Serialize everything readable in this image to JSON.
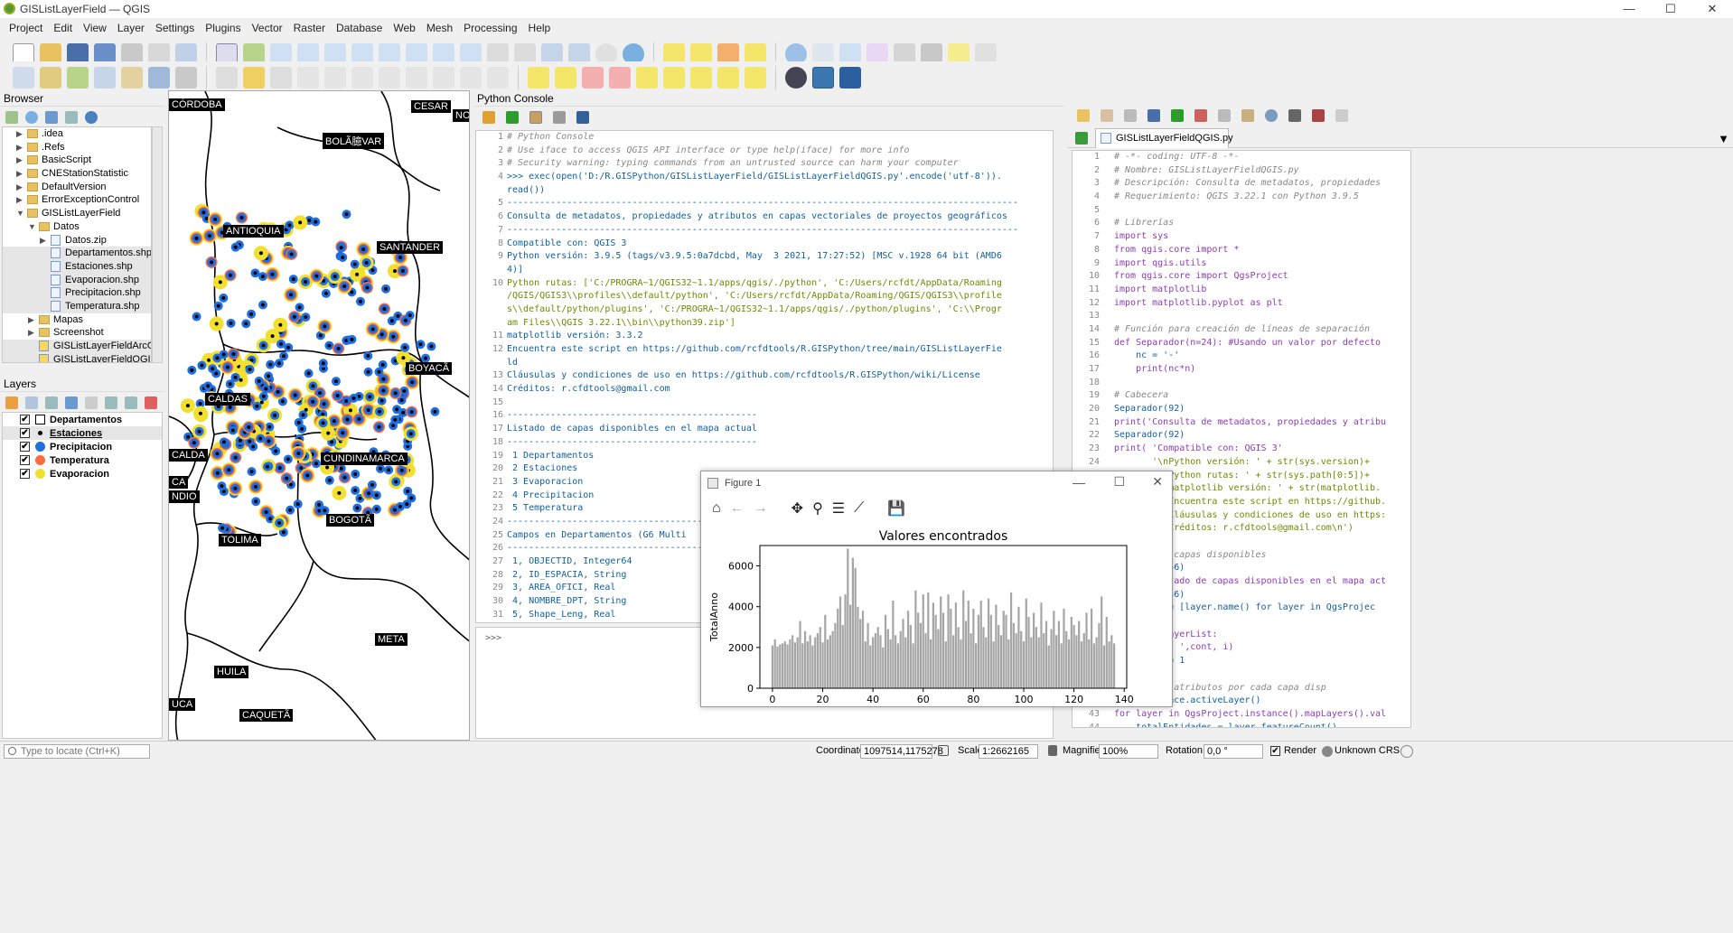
{
  "window": {
    "title": "GISListLayerField — QGIS",
    "controls": [
      "—",
      "☐",
      "✕"
    ]
  },
  "menu": [
    "Project",
    "Edit",
    "View",
    "Layer",
    "Settings",
    "Plugins",
    "Vector",
    "Raster",
    "Database",
    "Web",
    "Mesh",
    "Processing",
    "Help"
  ],
  "browser": {
    "title": "Browser",
    "items": [
      {
        "label": ".idea",
        "type": "folder",
        "depth": 2,
        "arrow": "▶"
      },
      {
        "label": ".Refs",
        "type": "folder",
        "depth": 2,
        "arrow": "▶"
      },
      {
        "label": "BasicScript",
        "type": "folder",
        "depth": 2,
        "arrow": "▶"
      },
      {
        "label": "CNEStationStatistic",
        "type": "folder",
        "depth": 2,
        "arrow": "▶"
      },
      {
        "label": "DefaultVersion",
        "type": "folder",
        "depth": 2,
        "arrow": "▶"
      },
      {
        "label": "ErrorExceptionControl",
        "type": "folder",
        "depth": 2,
        "arrow": "▶"
      },
      {
        "label": "GISListLayerField",
        "type": "folder",
        "depth": 2,
        "arrow": "▼"
      },
      {
        "label": "Datos",
        "type": "folder",
        "depth": 3,
        "arrow": "▼"
      },
      {
        "label": "Datos.zip",
        "type": "file",
        "depth": 4,
        "arrow": "▶"
      },
      {
        "label": "Departamentos.shp",
        "type": "shp",
        "depth": 4,
        "arrow": ""
      },
      {
        "label": "Estaciones.shp",
        "type": "shp",
        "depth": 4,
        "arrow": ""
      },
      {
        "label": "Evaporacion.shp",
        "type": "shp",
        "depth": 4,
        "arrow": ""
      },
      {
        "label": "Precipitacion.shp",
        "type": "shp",
        "depth": 4,
        "arrow": ""
      },
      {
        "label": "Temperatura.shp",
        "type": "shp",
        "depth": 4,
        "arrow": ""
      },
      {
        "label": "Mapas",
        "type": "folder",
        "depth": 3,
        "arrow": "▶"
      },
      {
        "label": "Screenshot",
        "type": "folder",
        "depth": 3,
        "arrow": "▶"
      },
      {
        "label": "GISListLayerFieldArcGI",
        "type": "py",
        "depth": 3,
        "arrow": ""
      },
      {
        "label": "GISListLayerFieldQGIS",
        "type": "py",
        "depth": 3,
        "arrow": ""
      }
    ]
  },
  "layers": {
    "title": "Layers",
    "items": [
      {
        "label": "Departamentos",
        "symbol": "square",
        "color": "#ffffff",
        "checked": true
      },
      {
        "label": "Estaciones",
        "symbol": "dot",
        "color": "#000000",
        "checked": true
      },
      {
        "label": "Precipitacion",
        "symbol": "circle",
        "color": "#1f6fe0",
        "checked": true
      },
      {
        "label": "Temperatura",
        "symbol": "circle",
        "color": "#ff6a3d",
        "checked": true
      },
      {
        "label": "Evaporacion",
        "symbol": "circle",
        "color": "#f2e030",
        "checked": true
      }
    ]
  },
  "map": {
    "labels": [
      "CÓRDOBA",
      "CESAR",
      "NO",
      "BOLÃ臆VAR",
      "ANTIOQUIA",
      "SANTANDER",
      "BOYACÃ",
      "CALDAS",
      "CALDA",
      "CA",
      "NDIO",
      "CUNDINAMARCA",
      "BOGOTÃ",
      "TOLIMA",
      "META",
      "HUILA",
      "UCA",
      "CAQUETÃ"
    ]
  },
  "console": {
    "title": "Python Console",
    "prompt": ">>>",
    "lines": [
      {
        "n": "1",
        "t": "# Python Console",
        "c": "cm"
      },
      {
        "n": "2",
        "t": "# Use iface to access QGIS API interface or type help(iface) for more info",
        "c": "cm"
      },
      {
        "n": "3",
        "t": "# Security warning: typing commands from an untrusted source can harm your computer",
        "c": "cm"
      },
      {
        "n": "4",
        "t": ">>> exec(open('D:/R.GISPython/GISListLayerField/GISListLayerFieldQGIS.py'.encode('utf-8')).",
        "c": "fn"
      },
      {
        "n": "",
        "t": "read())",
        "c": "fn"
      },
      {
        "n": "5",
        "t": "----------------------------------------------------------------------------------------------",
        "c": "fn"
      },
      {
        "n": "6",
        "t": "Consulta de metadatos, propiedades y atributos en capas vectoriales de proyectos geográficos",
        "c": "fn"
      },
      {
        "n": "7",
        "t": "----------------------------------------------------------------------------------------------",
        "c": "fn"
      },
      {
        "n": "8",
        "t": "Compatible con: QGIS 3",
        "c": "fn"
      },
      {
        "n": "9",
        "t": "Python versión: 3.9.5 (tags/v3.9.5:0a7dcbd, May  3 2021, 17:27:52) [MSC v.1928 64 bit (AMD6",
        "c": "fn"
      },
      {
        "n": "",
        "t": "4)]",
        "c": "fn"
      },
      {
        "n": "10",
        "t": "Python rutas: ['C:/PROGRA~1/QGIS32~1.1/apps/qgis/./python', 'C:/Users/rcfdt/AppData/Roaming",
        "c": "fn"
      },
      {
        "n": "",
        "t": "/QGIS/QGIS3\\\\profiles\\\\default/python', 'C:/Users/rcfdt/AppData/Roaming/QGIS/QGIS3\\\\profile",
        "c": "fn"
      },
      {
        "n": "",
        "t": "s\\\\default/python/plugins', 'C:/PROGRA~1/QGIS32~1.1/apps/qgis/./python/plugins', 'C:\\\\Progr",
        "c": "fn"
      },
      {
        "n": "",
        "t": "am Files\\\\QGIS 3.22.1\\\\bin\\\\python39.zip']",
        "c": "fn"
      },
      {
        "n": "11",
        "t": "matplotlib versión: 3.3.2",
        "c": "fn"
      },
      {
        "n": "12",
        "t": "Encuentra este script en https://github.com/rcfdtools/R.GISPython/tree/main/GISListLayerFie",
        "c": "fn"
      },
      {
        "n": "",
        "t": "ld",
        "c": "fn"
      },
      {
        "n": "13",
        "t": "Cláusulas y condiciones de uso en https://github.com/rcfdtools/R.GISPython/wiki/License",
        "c": "fn"
      },
      {
        "n": "14",
        "t": "Créditos: r.cfdtools@gmail.com",
        "c": "fn"
      },
      {
        "n": "15",
        "t": "",
        "c": "fn"
      },
      {
        "n": "16",
        "t": "----------------------------------------------",
        "c": "fn"
      },
      {
        "n": "17",
        "t": "Listado de capas disponibles en el mapa actual",
        "c": "fn"
      },
      {
        "n": "18",
        "t": "----------------------------------------------",
        "c": "fn"
      },
      {
        "n": "19",
        "t": " 1 Departamentos",
        "c": "fn"
      },
      {
        "n": "20",
        "t": " 2 Estaciones",
        "c": "fn"
      },
      {
        "n": "21",
        "t": " 3 Evaporacion",
        "c": "fn"
      },
      {
        "n": "22",
        "t": " 4 Precipitacion",
        "c": "fn"
      },
      {
        "n": "23",
        "t": " 5 Temperatura",
        "c": "fn"
      },
      {
        "n": "24",
        "t": "--------------------------------------------------",
        "c": "fn"
      },
      {
        "n": "25",
        "t": "Campos en Departamentos (G6 Multi",
        "c": "fn"
      },
      {
        "n": "26",
        "t": "--------------------------------------------------",
        "c": "fn"
      },
      {
        "n": "27",
        "t": " 1, OBJECTID, Integer64",
        "c": "fn"
      },
      {
        "n": "28",
        "t": " 2, ID_ESPACIA, String",
        "c": "fn"
      },
      {
        "n": "29",
        "t": " 3, AREA_OFICI, Real",
        "c": "fn"
      },
      {
        "n": "30",
        "t": " 4, NOMBRE_DPT, String",
        "c": "fn"
      },
      {
        "n": "31",
        "t": " 5, Shape_Leng, Real",
        "c": "fn"
      }
    ]
  },
  "editor": {
    "tab": "GISListLayerFieldQGIS.py",
    "close": "✕",
    "lines": [
      {
        "n": "1",
        "t": "# -*- coding: UTF-8 -*-",
        "c": "cm"
      },
      {
        "n": "2",
        "t": "# Nombre: GISListLayerFieldQGIS.py",
        "c": "cm"
      },
      {
        "n": "3",
        "t": "# Descripción: Consulta de metadatos, propiedades",
        "c": "cm"
      },
      {
        "n": "4",
        "t": "# Requerimiento: QGIS 3.22.1 con Python 3.9.5",
        "c": "cm"
      },
      {
        "n": "5",
        "t": "",
        "c": "cm"
      },
      {
        "n": "6",
        "t": "# Librerías",
        "c": "cm"
      },
      {
        "n": "7",
        "t": "import sys",
        "c": "kw"
      },
      {
        "n": "8",
        "t": "from qgis.core import *",
        "c": "kw"
      },
      {
        "n": "9",
        "t": "import qgis.utils",
        "c": "kw"
      },
      {
        "n": "10",
        "t": "from qgis.core import QgsProject",
        "c": "kw"
      },
      {
        "n": "11",
        "t": "import matplotlib",
        "c": "kw"
      },
      {
        "n": "12",
        "t": "import matplotlib.pyplot as plt",
        "c": "kw"
      },
      {
        "n": "13",
        "t": "",
        "c": "kw"
      },
      {
        "n": "14",
        "t": "# Función para creación de líneas de separación",
        "c": "cm"
      },
      {
        "n": "15",
        "t": "def Separador(n=24): #Usando un valor por defecto",
        "c": "kw"
      },
      {
        "n": "16",
        "t": "    nc = '-'",
        "c": "fn"
      },
      {
        "n": "17",
        "t": "    print(nc*n)",
        "c": "kw"
      },
      {
        "n": "18",
        "t": "",
        "c": "fn"
      },
      {
        "n": "19",
        "t": "# Cabecera",
        "c": "cm"
      },
      {
        "n": "20",
        "t": "Separador(92)",
        "c": "fn"
      },
      {
        "n": "21",
        "t": "print('Consulta de metadatos, propiedades y atribu",
        "c": "kw"
      },
      {
        "n": "22",
        "t": "Separador(92)",
        "c": "fn"
      },
      {
        "n": "23",
        "t": "print( 'Compatible con: QGIS 3'",
        "c": "kw"
      },
      {
        "n": "24",
        "t": "       '\\nPython versión: ' + str(sys.version)+",
        "c": "st"
      },
      {
        "n": "25",
        "t": "       '\\nPython rutas: ' + str(sys.path[0:5])+",
        "c": "st"
      },
      {
        "n": "26",
        "t": "       '\\nmatplotlib versión: ' + str(matplotlib.",
        "c": "st"
      },
      {
        "n": "27",
        "t": "       '\\nEncuentra este script en https://github.",
        "c": "st"
      },
      {
        "n": "28",
        "t": "       '\\nCláusulas y condiciones de uso en https:",
        "c": "st"
      },
      {
        "n": "29",
        "t": "       '\\nCréditos: r.cfdtools@gmail.com\\n')",
        "c": "st"
      },
      {
        "n": "30",
        "t": "",
        "c": "fn"
      },
      {
        "n": "31",
        "t": "# Lista de capas disponibles",
        "c": "cm"
      },
      {
        "n": "32",
        "t": "Separador(46)",
        "c": "fn"
      },
      {
        "n": "33",
        "t": "print('Listado de capas disponibles en el mapa act",
        "c": "kw"
      },
      {
        "n": "34",
        "t": "Separador(46)",
        "c": "fn"
      },
      {
        "n": "35",
        "t": "layerList = [layer.name() for layer in QgsProjec",
        "c": "fn"
      },
      {
        "n": "36",
        "t": "cont = 1",
        "c": "fn"
      },
      {
        "n": "37",
        "t": "for i in layerList:",
        "c": "kw"
      },
      {
        "n": "38",
        "t": "    print(' ',cont, i)",
        "c": "kw"
      },
      {
        "n": "39",
        "t": "    cont += 1",
        "c": "fn"
      },
      {
        "n": "40",
        "t": "",
        "c": "fn"
      },
      {
        "n": "41",
        "t": "# Lista de atributos por cada capa disp",
        "c": "cm"
      },
      {
        "n": "42",
        "t": "layer = iface.activeLayer()",
        "c": "fn"
      },
      {
        "n": "43",
        "t": "for layer in QgsProject.instance().mapLayers().val",
        "c": "kw"
      },
      {
        "n": "44",
        "t": "    totalEntidades = layer.featureCount()",
        "c": "fn"
      }
    ]
  },
  "figure": {
    "window_title": "Figure 1",
    "toolbar": [
      "home-icon",
      "back-icon",
      "forward-icon",
      "pan-icon",
      "zoom-icon",
      "configure-icon",
      "edit-axis-icon",
      "save-icon"
    ],
    "toolbar_glyphs": [
      "⌂",
      "←",
      "→",
      "✥",
      "⚲",
      "☰",
      "⟋",
      "💾"
    ]
  },
  "chart_data": {
    "type": "bar",
    "title": "Valores encontrados",
    "xlabel": "",
    "ylabel": "TotalAnno",
    "xlim": [
      -5,
      141
    ],
    "ylim": [
      0,
      7000
    ],
    "xticks": [
      0,
      20,
      40,
      60,
      80,
      100,
      120,
      140
    ],
    "yticks": [
      0,
      2000,
      4000,
      6000
    ],
    "color": "#a6a6a6",
    "values": [
      2100,
      2400,
      2050,
      2150,
      2200,
      2300,
      2150,
      2400,
      2600,
      2250,
      2500,
      3300,
      2200,
      2800,
      2300,
      2600,
      2100,
      2500,
      2700,
      3000,
      2250,
      3600,
      2400,
      2600,
      2800,
      3200,
      3900,
      4500,
      3100,
      4600,
      6850,
      4100,
      6400,
      5900,
      4000,
      3400,
      3800,
      2300,
      3200,
      2100,
      2500,
      2700,
      3000,
      2600,
      2000,
      3600,
      2900,
      2400,
      4300,
      2600,
      2200,
      2800,
      3400,
      2500,
      3800,
      3100,
      2200,
      4800,
      3700,
      3200,
      4600,
      2700,
      4700,
      2400,
      4200,
      3600,
      2900,
      4500,
      3700,
      2300,
      4600,
      3900,
      2600,
      4200,
      3000,
      2400,
      4800,
      3300,
      4300,
      2700,
      3900,
      2200,
      3600,
      4300,
      3000,
      2500,
      4400,
      3600,
      2300,
      4100,
      3100,
      2600,
      3800,
      3600,
      2400,
      4700,
      3200,
      2700,
      4000,
      2800,
      2300,
      4400,
      3500,
      2500,
      3700,
      3000,
      2500,
      4200,
      2700,
      3300,
      2100,
      2900,
      3800,
      2600,
      3300,
      2200,
      3900,
      2800,
      2400,
      3500,
      3100,
      2600,
      3300,
      2300,
      2700,
      3700,
      2400,
      3900,
      2200,
      2500,
      3200,
      4500,
      2100,
      3500,
      2300,
      2600,
      2200
    ],
    "x": "0..136"
  },
  "status": {
    "locator_placeholder": "Type to locate (Ctrl+K)",
    "coordinate_label": "Coordinate",
    "coordinate_value": "1097514,1175278",
    "scale_label": "Scale",
    "scale_value": "1:2662165",
    "magnifier_label": "Magnifier",
    "magnifier_value": "100%",
    "rotation_label": "Rotation",
    "rotation_value": "0,0 °",
    "render_label": "Render",
    "crs_label": "Unknown CRS"
  }
}
